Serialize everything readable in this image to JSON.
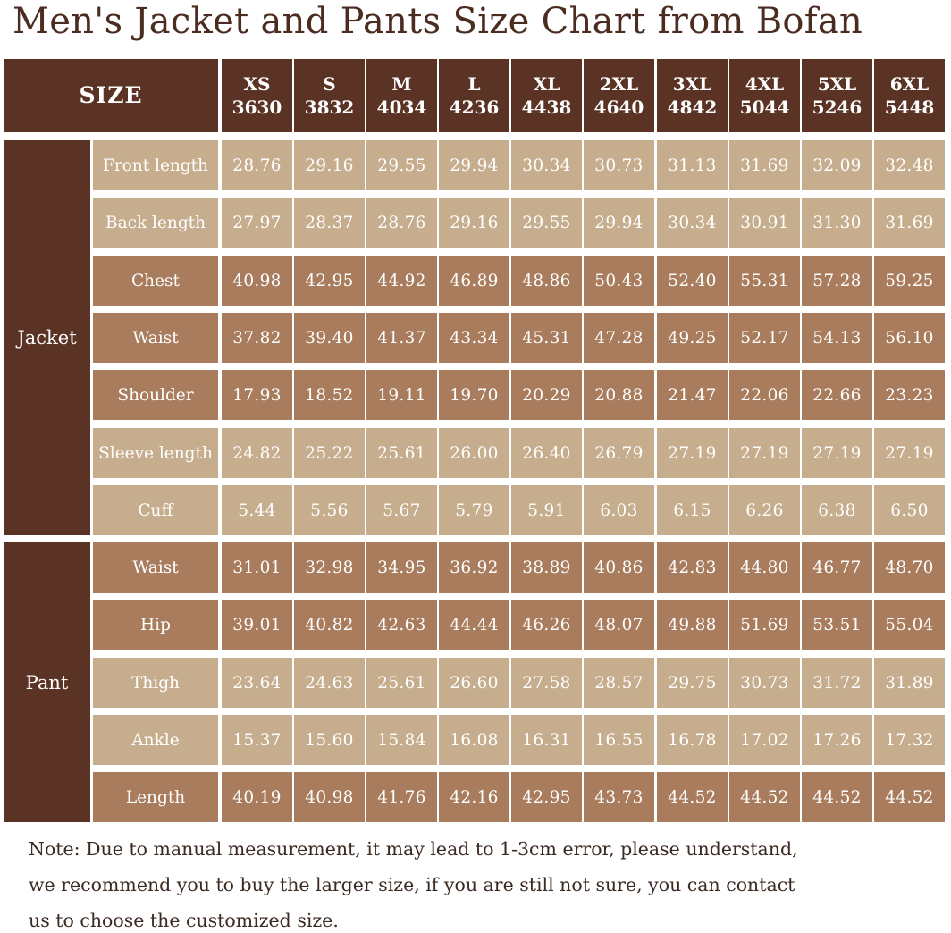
{
  "title": "Men's Jacket and Pants Size Chart from Bofan",
  "header": {
    "size_label": "SIZE",
    "sizes": [
      {
        "name": "XS",
        "code": "3630"
      },
      {
        "name": "S",
        "code": "3832"
      },
      {
        "name": "M",
        "code": "4034"
      },
      {
        "name": "L",
        "code": "4236"
      },
      {
        "name": "XL",
        "code": "4438"
      },
      {
        "name": "2XL",
        "code": "4640"
      },
      {
        "name": "3XL",
        "code": "4842"
      },
      {
        "name": "4XL",
        "code": "5044"
      },
      {
        "name": "5XL",
        "code": "5246"
      },
      {
        "name": "6XL",
        "code": "5448"
      }
    ]
  },
  "groups": [
    {
      "name": "Jacket",
      "rows": [
        {
          "label": "Front length",
          "values": [
            "28.76",
            "29.16",
            "29.55",
            "29.94",
            "30.34",
            "30.73",
            "31.13",
            "31.69",
            "32.09",
            "32.48"
          ]
        },
        {
          "label": "Back length",
          "values": [
            "27.97",
            "28.37",
            "28.76",
            "29.16",
            "29.55",
            "29.94",
            "30.34",
            "30.91",
            "31.30",
            "31.69"
          ]
        },
        {
          "label": "Chest",
          "values": [
            "40.98",
            "42.95",
            "44.92",
            "46.89",
            "48.86",
            "50.43",
            "52.40",
            "55.31",
            "57.28",
            "59.25"
          ]
        },
        {
          "label": "Waist",
          "values": [
            "37.82",
            "39.40",
            "41.37",
            "43.34",
            "45.31",
            "47.28",
            "49.25",
            "52.17",
            "54.13",
            "56.10"
          ]
        },
        {
          "label": "Shoulder",
          "values": [
            "17.93",
            "18.52",
            "19.11",
            "19.70",
            "20.29",
            "20.88",
            "21.47",
            "22.06",
            "22.66",
            "23.23"
          ]
        },
        {
          "label": "Sleeve length",
          "values": [
            "24.82",
            "25.22",
            "25.61",
            "26.00",
            "26.40",
            "26.79",
            "27.19",
            "27.19",
            "27.19",
            "27.19"
          ]
        },
        {
          "label": "Cuff",
          "values": [
            "5.44",
            "5.56",
            "5.67",
            "5.79",
            "5.91",
            "6.03",
            "6.15",
            "6.26",
            "6.38",
            "6.50"
          ]
        }
      ]
    },
    {
      "name": "Pant",
      "rows": [
        {
          "label": "Waist",
          "values": [
            "31.01",
            "32.98",
            "34.95",
            "36.92",
            "38.89",
            "40.86",
            "42.83",
            "44.80",
            "46.77",
            "48.70"
          ]
        },
        {
          "label": "Hip",
          "values": [
            "39.01",
            "40.82",
            "42.63",
            "44.44",
            "46.26",
            "48.07",
            "49.88",
            "51.69",
            "53.51",
            "55.04"
          ]
        },
        {
          "label": "Thigh",
          "values": [
            "23.64",
            "24.63",
            "25.61",
            "26.60",
            "27.58",
            "28.57",
            "29.75",
            "30.73",
            "31.72",
            "31.89"
          ]
        },
        {
          "label": "Ankle",
          "values": [
            "15.37",
            "15.60",
            "15.84",
            "16.08",
            "16.31",
            "16.55",
            "16.78",
            "17.02",
            "17.26",
            "17.32"
          ]
        },
        {
          "label": "Length",
          "values": [
            "40.19",
            "40.98",
            "41.76",
            "42.16",
            "42.95",
            "43.73",
            "44.52",
            "44.52",
            "44.52",
            "44.52"
          ]
        }
      ]
    }
  ],
  "note": {
    "lines": [
      "Note: Due to manual measurement, it may lead to 1-3cm error, please understand,",
      "we recommend you to buy the larger size, if you are still not sure, you can contact",
      "us to choose the customized size."
    ]
  },
  "colors": {
    "header_brown": "#5b3324",
    "row_light": "#c6ad8d",
    "row_dark": "#a87c5c",
    "title_text": "#4a2c20"
  }
}
